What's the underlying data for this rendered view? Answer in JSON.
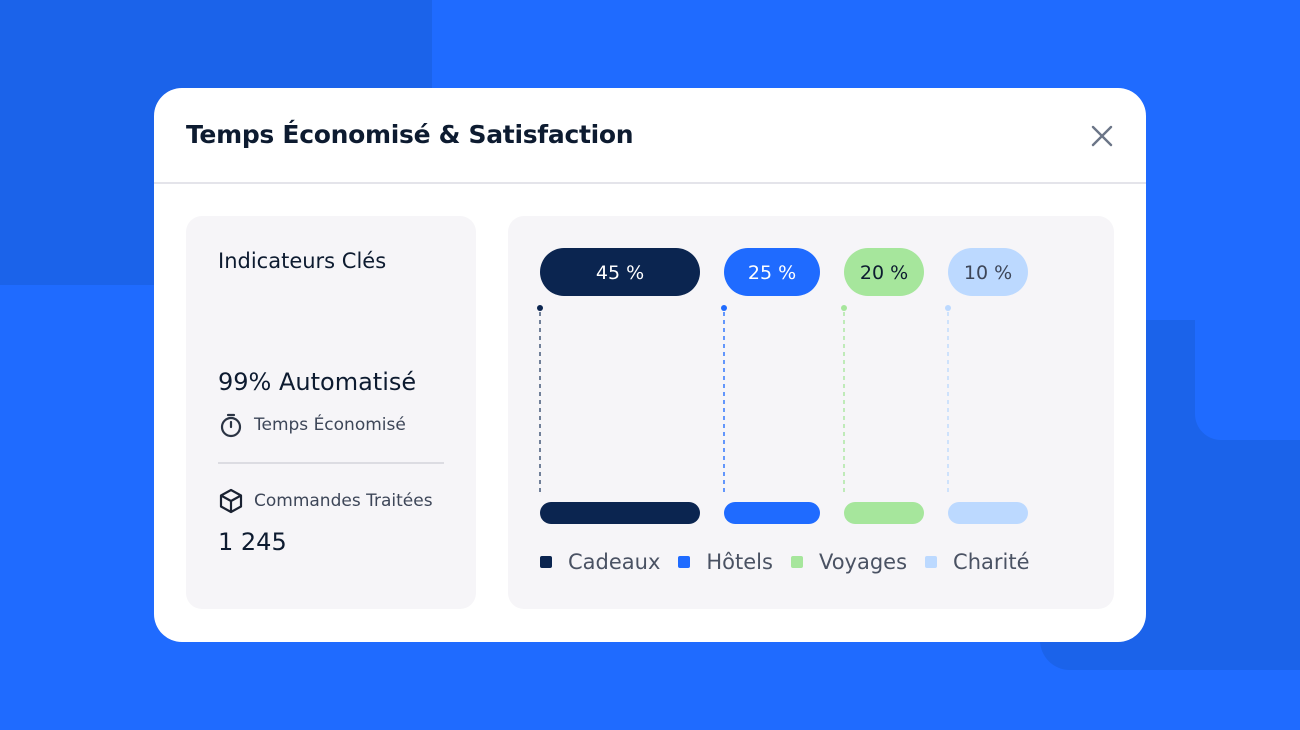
{
  "dialog": {
    "title": "Temps Économisé & Satisfaction",
    "close_icon": "close-icon"
  },
  "kpi": {
    "heading": "Indicateurs Clés",
    "automation": "99% Automatisé",
    "time_saved_label": "Temps Économisé",
    "time_icon": "stopwatch-icon",
    "orders_label": "Commandes Traitées",
    "orders_icon": "box-icon",
    "orders_count": "1 245"
  },
  "chart_data": {
    "type": "bar",
    "categories": [
      "Cadeaux",
      "Hôtels",
      "Voyages",
      "Charité"
    ],
    "values": [
      45,
      25,
      20,
      10
    ],
    "value_labels": [
      "45 %",
      "25 %",
      "20 %",
      "10 %"
    ],
    "colors": [
      "#0b2550",
      "#1f6bff",
      "#a6e69c",
      "#bcd9ff"
    ],
    "label_colors": [
      "#ffffff",
      "#ffffff",
      "#0d1b30",
      "#3d4658"
    ],
    "legend": "bottom"
  }
}
